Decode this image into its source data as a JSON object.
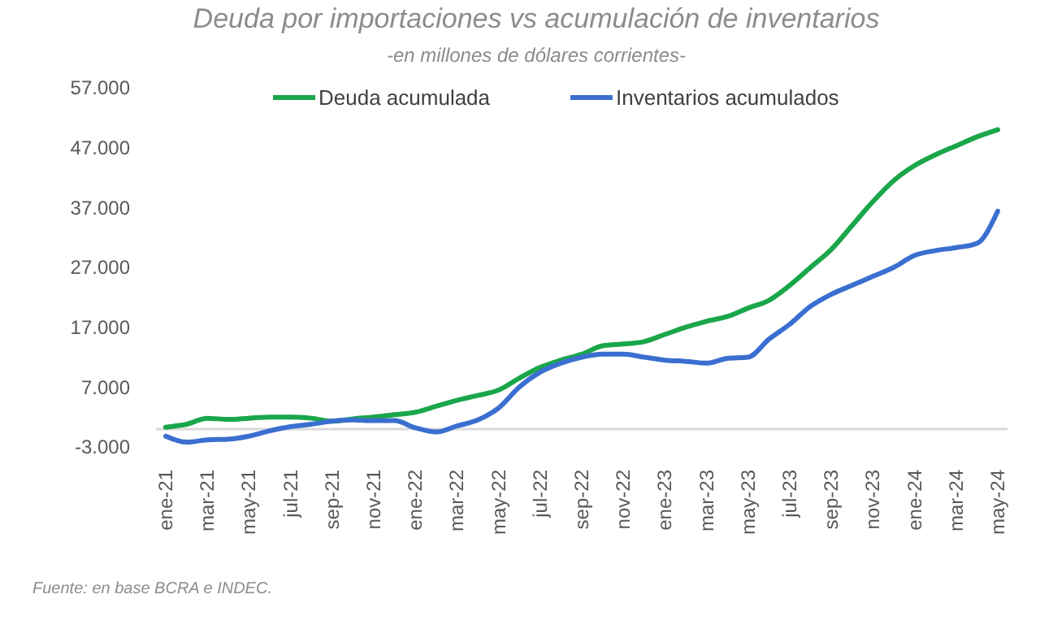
{
  "chart_data": {
    "type": "line",
    "title": "Deuda por importaciones vs acumulación de inventarios",
    "subtitle": "-en millones de dólares corrientes-",
    "categories": [
      "ene-21",
      null,
      "mar-21",
      null,
      "may-21",
      null,
      "jul-21",
      null,
      "sep-21",
      null,
      "nov-21",
      null,
      "ene-22",
      null,
      "mar-22",
      null,
      "may-22",
      null,
      "jul-22",
      null,
      "sep-22",
      null,
      "nov-22",
      null,
      "ene-23",
      null,
      "mar-23",
      null,
      "may-23",
      null,
      "jul-23",
      null,
      "sep-23",
      null,
      "nov-23",
      null,
      "ene-24",
      null,
      "mar-24",
      null,
      "may-24"
    ],
    "series": [
      {
        "name": "Deuda acumulada",
        "color": "#1aa64a",
        "values": [
          300,
          800,
          1800,
          1600,
          1800,
          2000,
          2000,
          1800,
          1300,
          1700,
          2000,
          2400,
          2800,
          3800,
          4800,
          5600,
          6500,
          8500,
          10300,
          11500,
          12500,
          13900,
          14200,
          14600,
          15800,
          17000,
          18000,
          18800,
          20200,
          21500,
          24000,
          27000,
          30000,
          34000,
          38000,
          41500,
          44000,
          45800,
          47300,
          48800,
          50000
        ]
      },
      {
        "name": "Inventarios acumulados",
        "color": "#3a6fd0",
        "values": [
          -1200,
          -2200,
          -1800,
          -1700,
          -1200,
          -300,
          400,
          800,
          1300,
          1500,
          1400,
          1400,
          200,
          -500,
          500,
          1500,
          3500,
          7000,
          9500,
          11000,
          12000,
          12500,
          12500,
          12000,
          11500,
          11300,
          11000,
          11800,
          12000,
          15000,
          17500,
          20500,
          22500,
          24000,
          25500,
          27000,
          29000,
          29800,
          30300,
          31000,
          36400
        ]
      }
    ],
    "ylim": [
      -3000,
      57000
    ],
    "yticks": [
      {
        "value": -3000,
        "label": "-3.000"
      },
      {
        "value": 7000,
        "label": "7.000"
      },
      {
        "value": 17000,
        "label": "17.000"
      },
      {
        "value": 27000,
        "label": "27.000"
      },
      {
        "value": 37000,
        "label": "37.000"
      },
      {
        "value": 47000,
        "label": "47.000"
      },
      {
        "value": 57000,
        "label": "57.000"
      }
    ],
    "legend": "top",
    "annotations": [
      "Fuente: en base BCRA e INDEC."
    ]
  }
}
